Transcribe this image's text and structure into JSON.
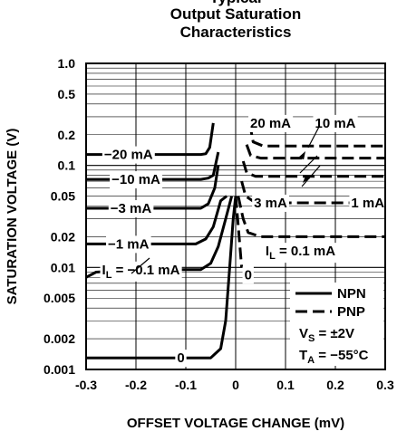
{
  "chart_data": {
    "type": "line",
    "title_lines": [
      "Typical",
      "Output Saturation",
      "Characteristics"
    ],
    "xlabel": "OFFSET VOLTAGE CHANGE (mV)",
    "ylabel": "SATURATION VOLTAGE (V)",
    "xlim": [
      -0.3,
      0.3
    ],
    "ylim": [
      0.001,
      1.0
    ],
    "yscale": "log",
    "grid": true,
    "x_ticks": [
      "-0.3",
      "-0.2",
      "-0.1",
      "0",
      "0.1",
      "0.2",
      "0.3"
    ],
    "y_ticks": [
      "0.001",
      "0.002",
      "0.005",
      "0.01",
      "0.02",
      "0.05",
      "0.1",
      "0.2",
      "0.5",
      "1.0"
    ],
    "legend": {
      "placement": "bottom-right",
      "entries": [
        {
          "label": "NPN",
          "style": "solid"
        },
        {
          "label": "PNP",
          "style": "dashed"
        }
      ],
      "conditions": [
        "VS = ±2V",
        "TA = −55°C"
      ]
    },
    "series": [
      {
        "group": "NPN",
        "label": "0",
        "style": "solid",
        "points": [
          [
            -0.3,
            0.0013
          ],
          [
            -0.05,
            0.0013
          ],
          [
            -0.03,
            0.0016
          ],
          [
            -0.02,
            0.003
          ],
          [
            -0.012,
            0.01
          ],
          [
            -0.005,
            0.03
          ],
          [
            0.0,
            0.05
          ]
        ]
      },
      {
        "group": "NPN",
        "label": "IL = −0.1 mA",
        "style": "solid",
        "points": [
          [
            -0.3,
            0.008
          ],
          [
            -0.28,
            0.009
          ],
          [
            -0.2,
            0.0095
          ],
          [
            -0.07,
            0.0095
          ],
          [
            -0.05,
            0.011
          ],
          [
            -0.035,
            0.016
          ],
          [
            -0.02,
            0.03
          ],
          [
            -0.008,
            0.05
          ]
        ]
      },
      {
        "group": "NPN",
        "label": "−1 mA",
        "style": "solid",
        "points": [
          [
            -0.3,
            0.017
          ],
          [
            -0.08,
            0.017
          ],
          [
            -0.06,
            0.019
          ],
          [
            -0.045,
            0.025
          ],
          [
            -0.03,
            0.045
          ],
          [
            -0.018,
            0.05
          ]
        ]
      },
      {
        "group": "NPN",
        "label": "−3 mA",
        "style": "solid",
        "points": [
          [
            -0.3,
            0.038
          ],
          [
            -0.07,
            0.038
          ],
          [
            -0.055,
            0.042
          ],
          [
            -0.042,
            0.06
          ],
          [
            -0.035,
            0.1
          ]
        ]
      },
      {
        "group": "NPN",
        "label": "−10 mA",
        "style": "solid",
        "points": [
          [
            -0.3,
            0.073
          ],
          [
            -0.07,
            0.073
          ],
          [
            -0.055,
            0.075
          ],
          [
            -0.045,
            0.08
          ],
          [
            -0.035,
            0.135
          ]
        ]
      },
      {
        "group": "NPN",
        "label": "−20 mA",
        "style": "solid",
        "points": [
          [
            -0.3,
            0.128
          ],
          [
            -0.07,
            0.128
          ],
          [
            -0.06,
            0.13
          ],
          [
            -0.052,
            0.15
          ],
          [
            -0.045,
            0.26
          ]
        ]
      },
      {
        "group": "PNP",
        "label": "0",
        "style": "dashed",
        "points": [
          [
            0.0,
            0.05
          ],
          [
            0.004,
            0.03
          ],
          [
            0.012,
            0.01
          ]
        ]
      },
      {
        "group": "PNP",
        "label": "IL = 0.1 mA",
        "style": "dashed",
        "points": [
          [
            0.005,
            0.05
          ],
          [
            0.015,
            0.03
          ],
          [
            0.025,
            0.022
          ],
          [
            0.05,
            0.02
          ],
          [
            0.3,
            0.02
          ]
        ]
      },
      {
        "group": "PNP",
        "label": "1 mA",
        "style": "dashed",
        "points": [
          [
            0.012,
            0.07
          ],
          [
            0.02,
            0.05
          ],
          [
            0.04,
            0.043
          ],
          [
            0.3,
            0.043
          ]
        ]
      },
      {
        "group": "PNP",
        "label": "3 mA",
        "style": "dashed",
        "points": [
          [
            0.015,
            0.11
          ],
          [
            0.022,
            0.085
          ],
          [
            0.04,
            0.078
          ],
          [
            0.3,
            0.078
          ]
        ]
      },
      {
        "group": "PNP",
        "label": "10 mA",
        "style": "dashed",
        "points": [
          [
            0.022,
            0.16
          ],
          [
            0.03,
            0.125
          ],
          [
            0.05,
            0.118
          ],
          [
            0.3,
            0.118
          ]
        ]
      },
      {
        "group": "PNP",
        "label": "20 mA",
        "style": "dashed",
        "points": [
          [
            0.028,
            0.26
          ],
          [
            0.035,
            0.17
          ],
          [
            0.055,
            0.155
          ],
          [
            0.3,
            0.155
          ]
        ]
      }
    ],
    "annotations": [
      {
        "text": "−20 mA",
        "x": -0.215,
        "y": 0.128
      },
      {
        "text": "−10 mA",
        "x": -0.2,
        "y": 0.073
      },
      {
        "text": "−3 mA",
        "x": -0.21,
        "y": 0.038
      },
      {
        "text": "−1 mA",
        "x": -0.215,
        "y": 0.017
      },
      {
        "text": "IL = −0.1 mA",
        "x": -0.19,
        "y": 0.0095
      },
      {
        "text": "0",
        "x": -0.11,
        "y": 0.0013
      },
      {
        "text": "20 mA",
        "x": 0.07,
        "y": 0.26
      },
      {
        "text": "10 mA",
        "x": 0.2,
        "y": 0.26
      },
      {
        "text": "3 mA",
        "x": 0.07,
        "y": 0.043
      },
      {
        "text": "1 mA",
        "x": 0.265,
        "y": 0.043
      },
      {
        "text": "IL = 0.1 mA",
        "x": 0.13,
        "y": 0.0145
      },
      {
        "text": "0",
        "x": 0.025,
        "y": 0.0085
      }
    ]
  }
}
